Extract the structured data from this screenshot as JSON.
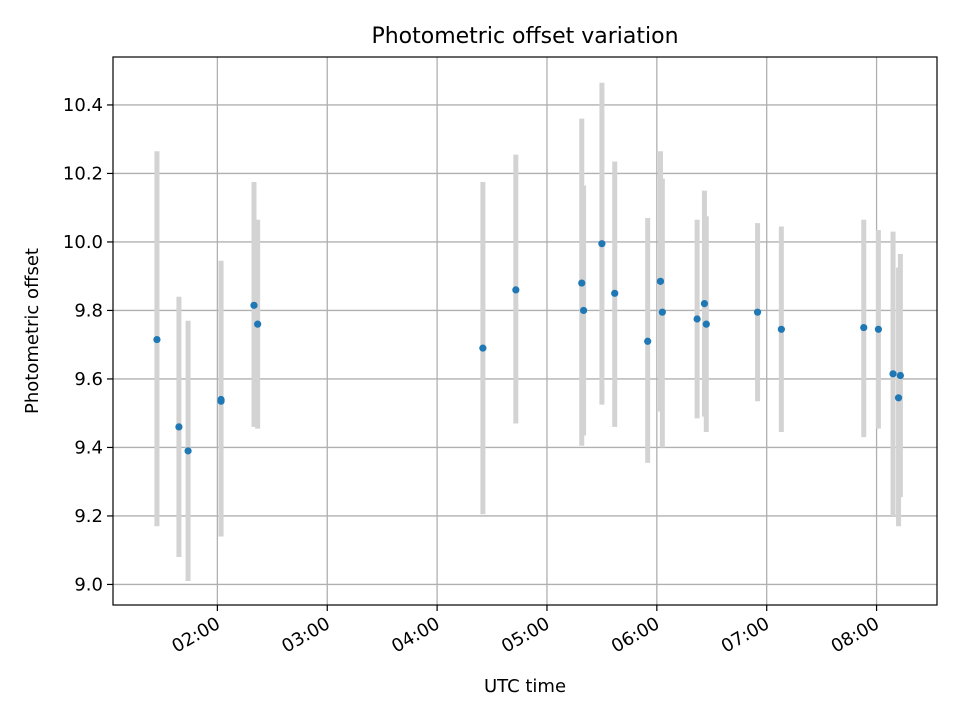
{
  "chart_data": {
    "type": "scatter",
    "title": "Photometric offset variation",
    "xlabel": "UTC time",
    "ylabel": "Photometric offset",
    "grid": true,
    "xlim_hours": [
      1.05,
      8.55
    ],
    "ylim": [
      8.94,
      10.54
    ],
    "xticks": [
      {
        "h": 2,
        "label": "02:00"
      },
      {
        "h": 3,
        "label": "03:00"
      },
      {
        "h": 4,
        "label": "04:00"
      },
      {
        "h": 5,
        "label": "05:00"
      },
      {
        "h": 6,
        "label": "06:00"
      },
      {
        "h": 7,
        "label": "07:00"
      },
      {
        "h": 8,
        "label": "08:00"
      }
    ],
    "yticks": [
      {
        "v": 9.0,
        "label": "9.0"
      },
      {
        "v": 9.2,
        "label": "9.2"
      },
      {
        "v": 9.4,
        "label": "9.4"
      },
      {
        "v": 9.6,
        "label": "9.6"
      },
      {
        "v": 9.8,
        "label": "9.8"
      },
      {
        "v": 10.0,
        "label": "10.0"
      },
      {
        "v": 10.2,
        "label": "10.2"
      },
      {
        "v": 10.4,
        "label": "10.4"
      }
    ],
    "colors": {
      "point": "#1f77b4",
      "errorbar": "#d3d3d3",
      "grid": "#b0b0b0"
    },
    "points": [
      {
        "t": "01:27",
        "y": 9.715,
        "lo": 9.17,
        "hi": 10.265
      },
      {
        "t": "01:39",
        "y": 9.46,
        "lo": 9.08,
        "hi": 9.84
      },
      {
        "t": "01:44",
        "y": 9.39,
        "lo": 9.01,
        "hi": 9.77
      },
      {
        "t": "02:02",
        "y": 9.54,
        "lo": 9.14,
        "hi": 9.945
      },
      {
        "t": "02:02",
        "y": 9.535,
        "lo": 9.14,
        "hi": 9.93
      },
      {
        "t": "02:20",
        "y": 9.815,
        "lo": 9.46,
        "hi": 10.175
      },
      {
        "t": "02:22",
        "y": 9.76,
        "lo": 9.455,
        "hi": 10.065
      },
      {
        "t": "04:25",
        "y": 9.69,
        "lo": 9.205,
        "hi": 10.175
      },
      {
        "t": "04:43",
        "y": 9.86,
        "lo": 9.47,
        "hi": 10.255
      },
      {
        "t": "05:19",
        "y": 9.88,
        "lo": 9.405,
        "hi": 10.36
      },
      {
        "t": "05:20",
        "y": 9.8,
        "lo": 9.435,
        "hi": 10.165
      },
      {
        "t": "05:30",
        "y": 9.995,
        "lo": 9.525,
        "hi": 10.465
      },
      {
        "t": "05:37",
        "y": 9.85,
        "lo": 9.46,
        "hi": 10.235
      },
      {
        "t": "05:55",
        "y": 9.71,
        "lo": 9.355,
        "hi": 10.07
      },
      {
        "t": "06:02",
        "y": 9.885,
        "lo": 9.505,
        "hi": 10.265
      },
      {
        "t": "06:03",
        "y": 9.795,
        "lo": 9.4,
        "hi": 10.185
      },
      {
        "t": "06:22",
        "y": 9.775,
        "lo": 9.485,
        "hi": 10.065
      },
      {
        "t": "06:26",
        "y": 9.82,
        "lo": 9.49,
        "hi": 10.15
      },
      {
        "t": "06:27",
        "y": 9.76,
        "lo": 9.445,
        "hi": 10.075
      },
      {
        "t": "06:55",
        "y": 9.795,
        "lo": 9.535,
        "hi": 10.055
      },
      {
        "t": "07:08",
        "y": 9.745,
        "lo": 9.445,
        "hi": 10.045
      },
      {
        "t": "07:53",
        "y": 9.75,
        "lo": 9.43,
        "hi": 10.065
      },
      {
        "t": "08:01",
        "y": 9.745,
        "lo": 9.455,
        "hi": 10.035
      },
      {
        "t": "08:09",
        "y": 9.615,
        "lo": 9.2,
        "hi": 10.03
      },
      {
        "t": "08:12",
        "y": 9.545,
        "lo": 9.17,
        "hi": 9.925
      },
      {
        "t": "08:13",
        "y": 9.61,
        "lo": 9.255,
        "hi": 9.965
      }
    ]
  }
}
